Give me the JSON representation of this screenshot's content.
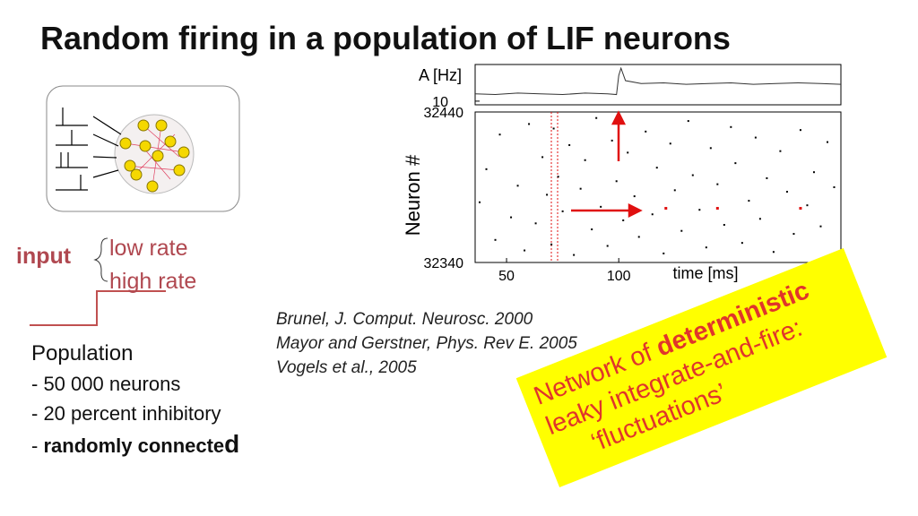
{
  "title": "Random firing  in a population of LIF neurons",
  "input": {
    "label": "input",
    "rates": [
      "low rate",
      "high rate"
    ]
  },
  "population": {
    "heading": "Population",
    "items": [
      "- 50 000 neurons",
      "- 20 percent inhibitory"
    ],
    "last_prefix": "- ",
    "last_bold": "randomly connecte",
    "last_big": "d"
  },
  "references": [
    "Brunel, J. Comput. Neurosc. 2000",
    "Mayor and Gerstner, Phys. Rev E. 2005",
    "Vogels et al., 2005"
  ],
  "note": {
    "lead": "Network of ",
    "emphasis": "deterministic",
    "line2": "leaky integrate-and-fire:",
    "line3": "‘fluctuations’"
  },
  "chart_data": {
    "type": "raster",
    "activity": {
      "ylabel": "A [Hz]",
      "ylim": [
        5,
        60
      ],
      "yticks": [
        10
      ],
      "x": [
        36,
        45,
        55,
        65,
        75,
        85,
        95,
        99,
        100,
        101,
        103,
        110,
        120,
        130,
        140,
        150,
        160,
        170,
        180,
        190,
        199
      ],
      "values": [
        20,
        19,
        21,
        20,
        19,
        21,
        20,
        19,
        45,
        55,
        38,
        34,
        35,
        33,
        34,
        35,
        33,
        34,
        35,
        34,
        33
      ],
      "color": "#333333"
    },
    "ylabel": "Neuron #",
    "xlabel": "time [ms]",
    "xlim": [
      36,
      199
    ],
    "ylim": [
      32340,
      32440
    ],
    "xticks": [
      50,
      100
    ],
    "yticks": [
      32340,
      32440
    ],
    "series": [
      {
        "color": "#000000",
        "x": [
          38,
          41,
          45,
          47,
          52,
          55,
          58,
          60,
          63,
          66,
          68,
          70,
          71,
          73,
          75,
          78,
          80,
          83,
          85,
          88,
          90,
          92,
          95,
          97,
          99,
          102,
          104,
          107,
          109,
          112,
          115,
          117,
          120,
          123,
          125,
          128,
          131,
          133,
          136,
          139,
          141,
          144,
          147,
          150,
          152,
          155,
          158,
          161,
          163,
          166,
          169,
          172,
          175,
          178,
          181,
          184,
          187,
          190,
          193,
          196
        ],
        "values": [
          32380,
          32402,
          32355,
          32425,
          32370,
          32391,
          32348,
          32432,
          32366,
          32410,
          32385,
          32352,
          32429,
          32397,
          32374,
          32418,
          32345,
          32389,
          32408,
          32362,
          32436,
          32377,
          32351,
          32421,
          32394,
          32368,
          32413,
          32384,
          32357,
          32427,
          32372,
          32403,
          32346,
          32419,
          32388,
          32361,
          32434,
          32398,
          32375,
          32350,
          32416,
          32392,
          32365,
          32430,
          32406,
          32353,
          32381,
          32423,
          32369,
          32396,
          32347,
          32414,
          32387,
          32359,
          32428,
          32378,
          32400,
          32364,
          32420,
          32390
        ]
      },
      {
        "color": "#e01010",
        "x": [
          121,
          144,
          181
        ],
        "values": [
          32376,
          32376,
          32376
        ]
      }
    ]
  }
}
